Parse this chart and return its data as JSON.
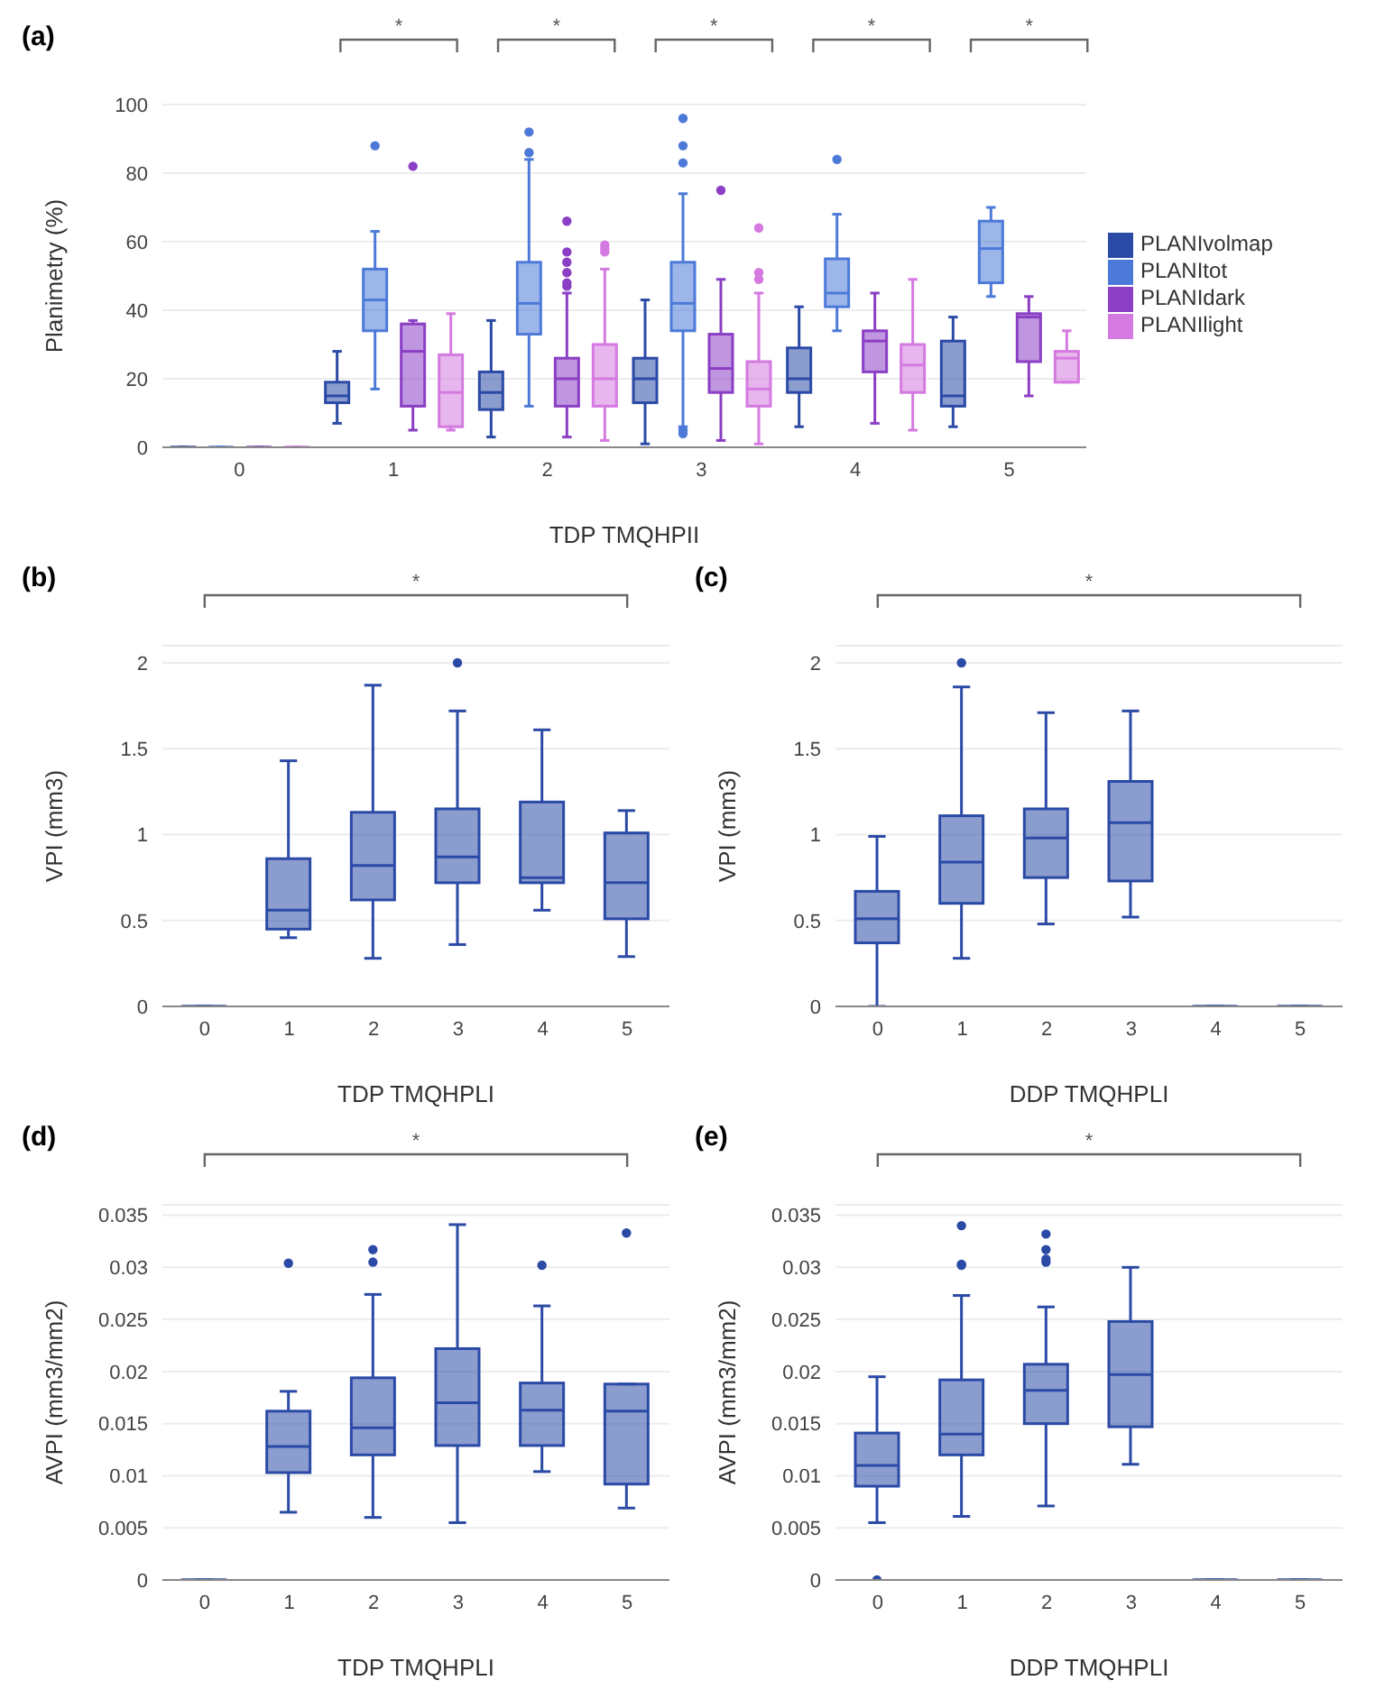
{
  "chart_data": [
    {
      "type": "box",
      "title": "(a)",
      "xlabel": "TDP TMQHPII",
      "ylabel": "Planimetry (%)",
      "categories": [
        "0",
        "1",
        "2",
        "3",
        "4",
        "5"
      ],
      "ylim": [
        0,
        100
      ],
      "yticks": [
        0,
        20,
        40,
        60,
        80,
        100
      ],
      "grid": "y",
      "legend": "right",
      "series": [
        {
          "name": "PLANIvolmap",
          "color": "#2b4aa6",
          "boxes": [
            {
              "low": 0,
              "q1": 0,
              "median": 0,
              "q3": 0,
              "high": 0
            },
            {
              "low": 7,
              "q1": 13,
              "median": 15,
              "q3": 19,
              "high": 28
            },
            {
              "low": 3,
              "q1": 11,
              "median": 16,
              "q3": 22,
              "high": 37
            },
            {
              "low": 1,
              "q1": 13,
              "median": 20,
              "q3": 26,
              "high": 43
            },
            {
              "low": 6,
              "q1": 16,
              "median": 20,
              "q3": 29,
              "high": 41
            },
            {
              "low": 6,
              "q1": 12,
              "median": 15,
              "q3": 31,
              "high": 38
            }
          ]
        },
        {
          "name": "PLANItot",
          "color": "#4d7ad8",
          "boxes": [
            {
              "low": 0,
              "q1": 0,
              "median": 0,
              "q3": 0,
              "high": 0
            },
            {
              "low": 17,
              "q1": 34,
              "median": 43,
              "q3": 52,
              "high": 63,
              "outliers": [
                88
              ]
            },
            {
              "low": 12,
              "q1": 33,
              "median": 42,
              "q3": 54,
              "high": 84,
              "outliers": [
                86,
                92
              ]
            },
            {
              "low": 6,
              "q1": 34,
              "median": 42,
              "q3": 54,
              "high": 74,
              "outliers": [
                4,
                5,
                83,
                88,
                96
              ]
            },
            {
              "low": 34,
              "q1": 41,
              "median": 45,
              "q3": 55,
              "high": 68,
              "outliers": [
                84
              ]
            },
            {
              "low": 44,
              "q1": 48,
              "median": 58,
              "q3": 66,
              "high": 70
            }
          ]
        },
        {
          "name": "PLANIdark",
          "color": "#8b3fc4",
          "boxes": [
            {
              "low": 0,
              "q1": 0,
              "median": 0,
              "q3": 0,
              "high": 0
            },
            {
              "low": 5,
              "q1": 12,
              "median": 28,
              "q3": 36,
              "high": 37,
              "outliers": [
                82
              ]
            },
            {
              "low": 3,
              "q1": 12,
              "median": 20,
              "q3": 26,
              "high": 45,
              "outliers": [
                47,
                48,
                51,
                54,
                57,
                66
              ]
            },
            {
              "low": 2,
              "q1": 16,
              "median": 23,
              "q3": 33,
              "high": 49,
              "outliers": [
                75
              ]
            },
            {
              "low": 7,
              "q1": 22,
              "median": 31,
              "q3": 34,
              "high": 45
            },
            {
              "low": 15,
              "q1": 25,
              "median": 38,
              "q3": 39,
              "high": 44
            }
          ]
        },
        {
          "name": "PLANIlight",
          "color": "#d47ae0",
          "boxes": [
            {
              "low": 0,
              "q1": 0,
              "median": 0,
              "q3": 0,
              "high": 0
            },
            {
              "low": 5,
              "q1": 6,
              "median": 16,
              "q3": 27,
              "high": 39
            },
            {
              "low": 2,
              "q1": 12,
              "median": 20,
              "q3": 30,
              "high": 52,
              "outliers": [
                57,
                58,
                59
              ]
            },
            {
              "low": 1,
              "q1": 12,
              "median": 17,
              "q3": 25,
              "high": 45,
              "outliers": [
                49,
                51,
                64
              ]
            },
            {
              "low": 5,
              "q1": 16,
              "median": 24,
              "q3": 30,
              "high": 49
            },
            {
              "low": 19,
              "q1": 19,
              "median": 26,
              "q3": 28,
              "high": 34
            }
          ]
        }
      ],
      "annotations": [
        "*",
        "*",
        "*",
        "*",
        "*"
      ]
    },
    {
      "type": "box",
      "title": "(b)",
      "xlabel": "TDP TMQHPLI",
      "ylabel": "VPI (mm3)",
      "categories": [
        "0",
        "1",
        "2",
        "3",
        "4",
        "5"
      ],
      "ylim": [
        0,
        2.1
      ],
      "yticks": [
        0,
        0.5,
        1,
        1.5,
        2
      ],
      "grid": "y",
      "color": "#2b4aa6",
      "boxes": [
        {
          "low": 0,
          "q1": 0,
          "median": 0,
          "q3": 0,
          "high": 0
        },
        {
          "low": 0.4,
          "q1": 0.45,
          "median": 0.56,
          "q3": 0.86,
          "high": 1.43
        },
        {
          "low": 0.28,
          "q1": 0.62,
          "median": 0.82,
          "q3": 1.13,
          "high": 1.87
        },
        {
          "low": 0.36,
          "q1": 0.72,
          "median": 0.87,
          "q3": 1.15,
          "high": 1.72,
          "outliers": [
            2
          ]
        },
        {
          "low": 0.56,
          "q1": 0.72,
          "median": 0.75,
          "q3": 1.19,
          "high": 1.61
        },
        {
          "low": 0.29,
          "q1": 0.51,
          "median": 0.72,
          "q3": 1.01,
          "high": 1.14
        }
      ],
      "annotations": [
        "*"
      ]
    },
    {
      "type": "box",
      "title": "(c)",
      "xlabel": "DDP TMQHPLI",
      "ylabel": "VPI (mm3)",
      "categories": [
        "0",
        "1",
        "2",
        "3",
        "4",
        "5"
      ],
      "ylim": [
        0,
        2.1
      ],
      "yticks": [
        0,
        0.5,
        1,
        1.5,
        2
      ],
      "grid": "y",
      "color": "#2b4aa6",
      "boxes": [
        {
          "low": 0,
          "q1": 0.37,
          "median": 0.51,
          "q3": 0.67,
          "high": 0.99
        },
        {
          "low": 0.28,
          "q1": 0.6,
          "median": 0.84,
          "q3": 1.11,
          "high": 1.86,
          "outliers": [
            2
          ]
        },
        {
          "low": 0.48,
          "q1": 0.75,
          "median": 0.98,
          "q3": 1.15,
          "high": 1.71
        },
        {
          "low": 0.52,
          "q1": 0.73,
          "median": 1.07,
          "q3": 1.31,
          "high": 1.72
        },
        {
          "low": 0,
          "q1": 0,
          "median": 0,
          "q3": 0,
          "high": 0
        },
        {
          "low": 0,
          "q1": 0,
          "median": 0,
          "q3": 0,
          "high": 0
        }
      ],
      "annotations": [
        "*"
      ]
    },
    {
      "type": "box",
      "title": "(d)",
      "xlabel": "TDP TMQHPLI",
      "ylabel": "AVPI (mm3/mm2)",
      "categories": [
        "0",
        "1",
        "2",
        "3",
        "4",
        "5"
      ],
      "ylim": [
        0,
        0.036
      ],
      "yticks": [
        0,
        0.005,
        0.01,
        0.015,
        0.02,
        0.025,
        0.03,
        0.035
      ],
      "grid": "y",
      "color": "#2b4aa6",
      "boxes": [
        {
          "low": 0,
          "q1": 0,
          "median": 0,
          "q3": 0,
          "high": 0
        },
        {
          "low": 0.0065,
          "q1": 0.0103,
          "median": 0.0128,
          "q3": 0.0162,
          "high": 0.0181,
          "outliers": [
            0.0304
          ]
        },
        {
          "low": 0.006,
          "q1": 0.012,
          "median": 0.0146,
          "q3": 0.0194,
          "high": 0.0274,
          "outliers": [
            0.0305,
            0.0317
          ]
        },
        {
          "low": 0.0055,
          "q1": 0.0129,
          "median": 0.017,
          "q3": 0.0222,
          "high": 0.0341
        },
        {
          "low": 0.0104,
          "q1": 0.0129,
          "median": 0.0163,
          "q3": 0.0189,
          "high": 0.0263,
          "outliers": [
            0.0302
          ]
        },
        {
          "low": 0.0069,
          "q1": 0.0092,
          "median": 0.0162,
          "q3": 0.0188,
          "high": 0.0188,
          "outliers": [
            0.0333
          ]
        }
      ],
      "annotations": [
        "*"
      ]
    },
    {
      "type": "box",
      "title": "(e)",
      "xlabel": "DDP TMQHPLI",
      "ylabel": "AVPI (mm3/mm2)",
      "categories": [
        "0",
        "1",
        "2",
        "3",
        "4",
        "5"
      ],
      "ylim": [
        0,
        0.036
      ],
      "yticks": [
        0,
        0.005,
        0.01,
        0.015,
        0.02,
        0.025,
        0.03,
        0.035
      ],
      "grid": "y",
      "color": "#2b4aa6",
      "boxes": [
        {
          "low": 0.0055,
          "q1": 0.009,
          "median": 0.011,
          "q3": 0.0141,
          "high": 0.0195,
          "outliers": [
            0
          ]
        },
        {
          "low": 0.0061,
          "q1": 0.012,
          "median": 0.014,
          "q3": 0.0192,
          "high": 0.0273,
          "outliers": [
            0.0302,
            0.0303,
            0.034
          ]
        },
        {
          "low": 0.0071,
          "q1": 0.015,
          "median": 0.0182,
          "q3": 0.0207,
          "high": 0.0262,
          "outliers": [
            0.0305,
            0.0308,
            0.0317,
            0.0332
          ]
        },
        {
          "low": 0.0111,
          "q1": 0.0147,
          "median": 0.0197,
          "q3": 0.0248,
          "high": 0.03
        },
        {
          "low": 0,
          "q1": 0,
          "median": 0,
          "q3": 0,
          "high": 0
        },
        {
          "low": 0,
          "q1": 0,
          "median": 0,
          "q3": 0,
          "high": 0
        }
      ],
      "annotations": [
        "*"
      ]
    }
  ]
}
